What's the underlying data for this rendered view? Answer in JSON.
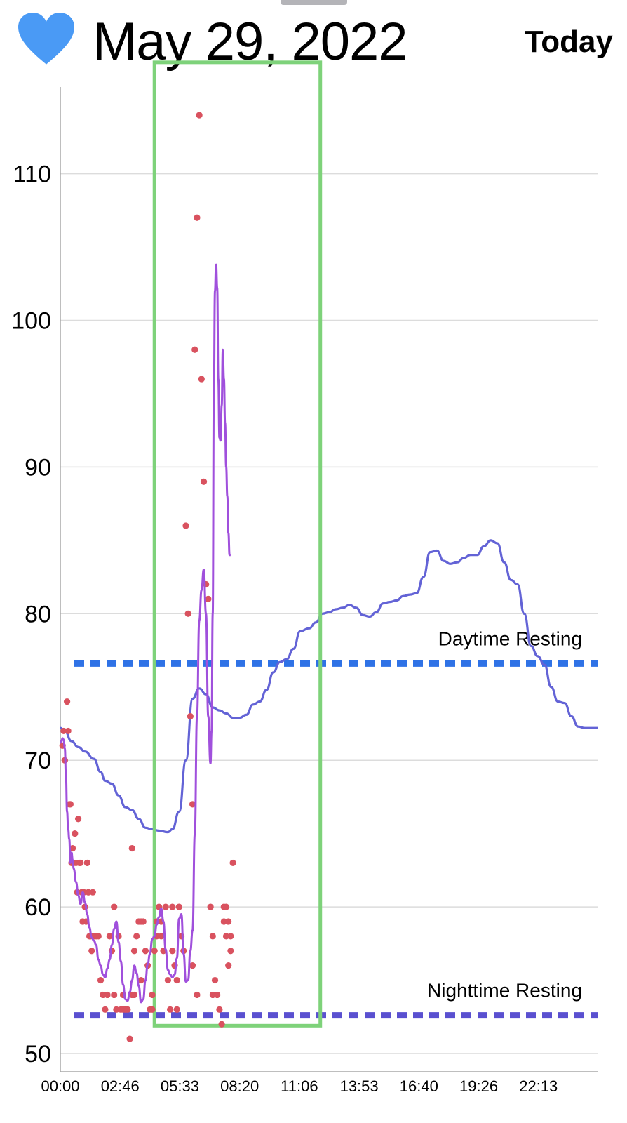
{
  "header": {
    "date": "May 29, 2022",
    "today_label": "Today",
    "heart_icon": "heart-icon",
    "heart_color": "#4a9af5"
  },
  "chart_data": {
    "type": "line",
    "title": "",
    "xlabel": "",
    "ylabel": "",
    "xlim": [
      0,
      24
    ],
    "ylim": [
      49,
      116
    ],
    "yticks": [
      50,
      60,
      70,
      80,
      90,
      100,
      110
    ],
    "xtick_labels": [
      "00:00",
      "02:46",
      "05:33",
      "08:20",
      "11:06",
      "13:53",
      "16:40",
      "19:26",
      "22:13"
    ],
    "colors": {
      "average_line": "#6363d6",
      "live_line": "#a050dc",
      "samples": "#d9525f",
      "daytime_resting": "#2f72e6",
      "nighttime_resting": "#5a50d0",
      "highlight": "#7ed27a"
    },
    "reference_lines": [
      {
        "label": "Daytime Resting",
        "value": 76.6
      },
      {
        "label": "Nighttime Resting",
        "value": 52.6
      }
    ],
    "highlight_range": {
      "x": [
        4.2,
        11.6
      ],
      "y": [
        51.9,
        117.6
      ]
    },
    "series": [
      {
        "kind": "average",
        "x": [
          0,
          0.2,
          0.5,
          0.8,
          1.1,
          1.5,
          1.8,
          2.0,
          2.3,
          2.6,
          2.9,
          3.2,
          3.5,
          3.8,
          4.1,
          4.4,
          4.8,
          5.0,
          5.3,
          5.6,
          5.9,
          6.2,
          6.5,
          6.8,
          7.1,
          7.4,
          7.7,
          8.0,
          8.3,
          8.6,
          8.9,
          9.2,
          9.5,
          9.8,
          10.1,
          10.4,
          10.7,
          11.1,
          11.4,
          11.7,
          12.0,
          12.3,
          12.6,
          12.9,
          13.2,
          13.5,
          13.8,
          14.1,
          14.4,
          14.7,
          15.0,
          15.3,
          15.6,
          15.9,
          16.2,
          16.5,
          16.8,
          17.1,
          17.4,
          17.7,
          18.0,
          18.3,
          18.6,
          18.9,
          19.2,
          19.5,
          19.8,
          20.1,
          20.4,
          20.7,
          21.0,
          21.3,
          21.6,
          21.9,
          22.2,
          22.5,
          22.8,
          23.1,
          23.4,
          23.7,
          24.0
        ],
        "y": [
          72.2,
          72.0,
          71.3,
          70.9,
          70.6,
          70.1,
          69.2,
          68.6,
          68.4,
          67.6,
          66.8,
          66.6,
          66.0,
          65.4,
          65.3,
          65.2,
          65.1,
          65.3,
          66.5,
          70.0,
          74.2,
          74.9,
          74.5,
          73.6,
          73.4,
          73.2,
          72.9,
          72.9,
          73.1,
          73.8,
          74.0,
          74.8,
          76.0,
          76.7,
          76.9,
          77.6,
          78.8,
          79.0,
          79.4,
          80.0,
          80.1,
          80.3,
          80.4,
          80.6,
          80.4,
          79.9,
          79.8,
          80.1,
          80.7,
          80.8,
          80.9,
          81.2,
          81.3,
          81.4,
          82.5,
          84.2,
          84.3,
          83.6,
          83.4,
          83.5,
          83.8,
          84.0,
          84.0,
          84.6,
          85.0,
          84.8,
          83.5,
          82.3,
          82.0,
          80.0,
          77.8,
          77.1,
          76.5,
          75.0,
          74.0,
          73.9,
          73.0,
          72.3,
          72.2,
          72.2,
          72.2
        ]
      },
      {
        "kind": "live",
        "x": [
          0,
          0.05,
          0.1,
          0.15,
          0.2,
          0.25,
          0.3,
          0.35,
          0.4,
          0.45,
          0.5,
          0.55,
          0.6,
          0.7,
          0.8,
          0.9,
          1.0,
          1.1,
          1.2,
          1.3,
          1.4,
          1.5,
          1.6,
          1.7,
          1.8,
          1.9,
          2.0,
          2.1,
          2.2,
          2.3,
          2.4,
          2.5,
          2.6,
          2.7,
          2.8,
          2.9,
          3.0,
          3.1,
          3.2,
          3.3,
          3.4,
          3.5,
          3.6,
          3.7,
          3.8,
          3.9,
          4.0,
          4.1,
          4.2,
          4.3,
          4.4,
          4.5,
          4.6,
          4.7,
          4.8,
          4.9,
          5.0,
          5.1,
          5.2,
          5.3,
          5.4,
          5.5,
          5.6,
          5.7,
          5.8,
          5.9,
          6.0,
          6.1,
          6.2,
          6.3,
          6.4,
          6.5,
          6.6,
          6.7,
          6.75,
          6.8,
          6.85,
          6.9,
          6.95,
          7.0,
          7.05,
          7.1,
          7.15,
          7.2,
          7.25,
          7.3,
          7.35,
          7.4,
          7.45,
          7.5,
          7.55,
          7.6
        ],
        "y": [
          71.2,
          71.3,
          71.5,
          71.4,
          70.8,
          69.0,
          66.5,
          65.3,
          64.6,
          63.0,
          63.7,
          63.2,
          62.6,
          61.7,
          60.8,
          60.2,
          61.0,
          60.3,
          59.5,
          58.6,
          57.9,
          57.7,
          57.4,
          56.4,
          56.0,
          55.4,
          55.2,
          55.8,
          56.4,
          57.4,
          58.5,
          59.0,
          57.6,
          56.3,
          54.7,
          53.7,
          53.6,
          54.2,
          55.0,
          56.0,
          55.5,
          54.6,
          53.5,
          53.7,
          55.0,
          56.1,
          56.8,
          57.8,
          58.0,
          58.8,
          59.3,
          59.9,
          59.0,
          57.1,
          55.7,
          55.4,
          55.2,
          55.4,
          56.5,
          59.2,
          59.5,
          56.8,
          54.9,
          55.0,
          57.0,
          58.4,
          65.0,
          73.0,
          79.5,
          81.6,
          83.0,
          80.0,
          73.0,
          69.8,
          72.0,
          80.0,
          95.0,
          102.0,
          103.8,
          102.2,
          96.0,
          92.0,
          91.8,
          94.2,
          98.0,
          96.0,
          93.0,
          90.0,
          88.0,
          85.5,
          84.0,
          84.0
        ]
      },
      {
        "kind": "samples",
        "x": [
          0.1,
          0.15,
          0.2,
          0.3,
          0.35,
          0.4,
          0.45,
          0.5,
          0.55,
          0.6,
          0.65,
          0.7,
          0.75,
          0.8,
          0.85,
          0.9,
          0.95,
          1.0,
          1.05,
          1.1,
          1.15,
          1.2,
          1.25,
          1.3,
          1.35,
          1.4,
          1.45,
          1.5,
          1.6,
          1.7,
          1.8,
          1.9,
          2.0,
          2.1,
          2.2,
          2.3,
          2.4,
          2.5,
          2.6,
          2.7,
          2.8,
          2.9,
          3.0,
          3.1,
          3.2,
          3.3,
          3.4,
          3.5,
          3.6,
          3.7,
          3.8,
          3.9,
          4.0,
          4.1,
          4.2,
          4.3,
          4.4,
          4.5,
          4.6,
          4.7,
          4.8,
          4.9,
          5.0,
          5.1,
          5.2,
          5.3,
          5.4,
          5.5,
          5.6,
          5.7,
          5.8,
          5.9,
          6.0,
          6.1,
          6.2,
          6.3,
          6.4,
          6.5,
          6.6,
          6.7,
          6.8,
          6.9,
          7.0,
          7.1,
          7.2,
          7.3,
          7.4,
          7.5,
          1.2,
          2.4,
          3.2,
          4.5,
          5.2,
          6.8,
          7.6,
          2.8,
          3.6,
          4.1,
          5.9,
          6.1,
          7.4,
          7.7,
          3.3,
          4.3,
          5.0,
          7.5,
          7.3,
          7.6
        ],
        "y": [
          71,
          72,
          70,
          74,
          72,
          67,
          67,
          63,
          64,
          63,
          65,
          63,
          61,
          66,
          63,
          63,
          61,
          59,
          61,
          60,
          59,
          63,
          61,
          58,
          58,
          57,
          61,
          58,
          58,
          58,
          55,
          54,
          53,
          54,
          58,
          57,
          54,
          53,
          58,
          53,
          54,
          53,
          53,
          51,
          54,
          57,
          58,
          59,
          59,
          59,
          57,
          56,
          53,
          54,
          57,
          59,
          60,
          59,
          57,
          60,
          55,
          53,
          60,
          56,
          53,
          60,
          58,
          57,
          86,
          80,
          73,
          67,
          98,
          107,
          114,
          96,
          89,
          82,
          81,
          60,
          58,
          55,
          54,
          53,
          52,
          59,
          60,
          56,
          63,
          60,
          64,
          58,
          55,
          54,
          57,
          53,
          55,
          53,
          56,
          54,
          58,
          63,
          54,
          58,
          57,
          59,
          60,
          58
        ]
      }
    ]
  }
}
